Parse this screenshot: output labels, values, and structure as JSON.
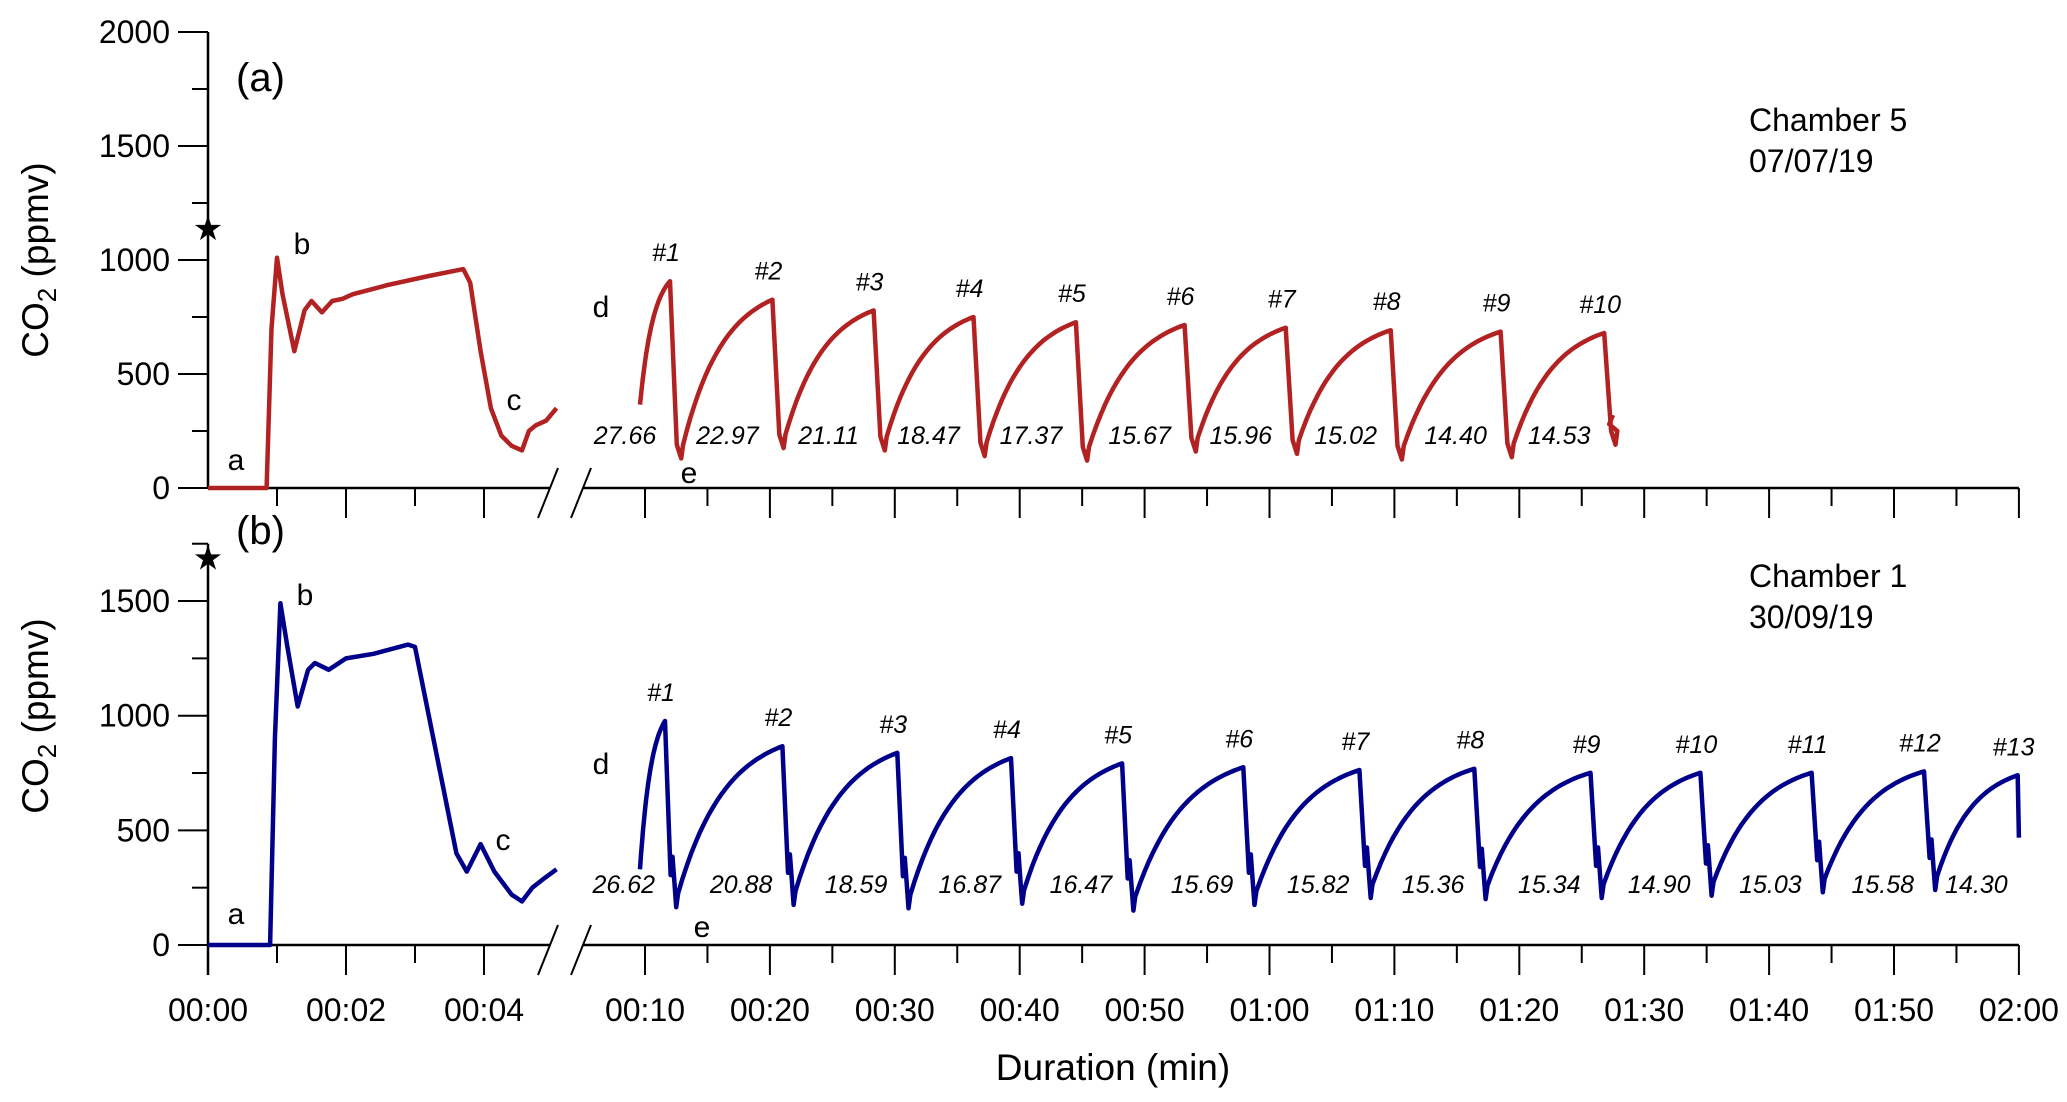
{
  "chart_data": {
    "type": "line",
    "xlabel": "Duration (min)",
    "x_ticks": [
      "00:00",
      "00:02",
      "00:04",
      "00:10",
      "00:20",
      "00:30",
      "00:40",
      "00:50",
      "01:00",
      "01:10",
      "01:20",
      "01:30",
      "01:40",
      "01:50",
      "02:00"
    ],
    "x_axis_break": [
      5,
      10
    ],
    "panels": [
      {
        "tag": "(a)",
        "chamber": "Chamber 5",
        "date": "07/07/19",
        "ylabel": "CO",
        "ylabel_sub": "2",
        "ylabel_unit": " (ppmv)",
        "ylim": [
          0,
          2000
        ],
        "y_ticks": [
          "0",
          "500",
          "1000",
          "1500",
          "2000"
        ],
        "color": "#b22222",
        "star_value": 1140,
        "letters": {
          "a": "a",
          "b": "b",
          "c": "c",
          "d": "d",
          "e": "e"
        },
        "initial_segment": [
          [
            0,
            0
          ],
          [
            0.85,
            0
          ],
          [
            0.92,
            700
          ],
          [
            1.0,
            1010
          ],
          [
            1.08,
            850
          ],
          [
            1.25,
            600
          ],
          [
            1.4,
            780
          ],
          [
            1.5,
            820
          ],
          [
            1.65,
            770
          ],
          [
            1.8,
            820
          ],
          [
            1.95,
            830
          ],
          [
            2.1,
            850
          ],
          [
            2.6,
            890
          ],
          [
            3.2,
            930
          ],
          [
            3.7,
            960
          ],
          [
            3.8,
            900
          ],
          [
            3.95,
            600
          ],
          [
            4.1,
            350
          ],
          [
            4.25,
            230
          ],
          [
            4.4,
            185
          ],
          [
            4.55,
            165
          ],
          [
            4.65,
            250
          ],
          [
            4.75,
            275
          ],
          [
            4.9,
            295
          ],
          [
            5.05,
            350
          ]
        ],
        "cycles_start": [
          9.6,
          366
        ],
        "cycles": [
          {
            "label": "#1",
            "peak_min": 12.0,
            "peak": 907,
            "trough": 130,
            "value": "27.66"
          },
          {
            "label": "#2",
            "peak_min": 20.2,
            "peak": 826,
            "trough": 175,
            "value": "22.97"
          },
          {
            "label": "#3",
            "peak_min": 28.3,
            "peak": 779,
            "trough": 165,
            "value": "21.11"
          },
          {
            "label": "#4",
            "peak_min": 36.3,
            "peak": 750,
            "trough": 140,
            "value": "18.47"
          },
          {
            "label": "#5",
            "peak_min": 44.5,
            "peak": 727,
            "trough": 120,
            "value": "17.37"
          },
          {
            "label": "#6",
            "peak_min": 53.2,
            "peak": 715,
            "trough": 160,
            "value": "15.67"
          },
          {
            "label": "#7",
            "peak_min": 61.3,
            "peak": 703,
            "trough": 150,
            "value": "15.96"
          },
          {
            "label": "#8",
            "peak_min": 69.7,
            "peak": 692,
            "trough": 125,
            "value": "15.02"
          },
          {
            "label": "#9",
            "peak_min": 78.5,
            "peak": 686,
            "trough": 135,
            "value": "14.40"
          },
          {
            "label": "#10",
            "peak_min": 86.8,
            "peak": 680,
            "trough": 190,
            "value": "14.53"
          }
        ],
        "cycles_end": [
          87.5,
          320
        ]
      },
      {
        "tag": "(b)",
        "chamber": "Chamber 1",
        "date": "30/09/19",
        "ylabel": "CO",
        "ylabel_sub": "2",
        "ylabel_unit": " (ppmv)",
        "ylim": [
          0,
          1750
        ],
        "y_ticks": [
          "0",
          "500",
          "1000",
          "1500"
        ],
        "color": "#00008b",
        "star_value": 1690,
        "letters": {
          "a": "a",
          "b": "b",
          "c": "c",
          "d": "d",
          "e": "e"
        },
        "initial_segment": [
          [
            0,
            0
          ],
          [
            0.9,
            0
          ],
          [
            0.97,
            900
          ],
          [
            1.05,
            1490
          ],
          [
            1.15,
            1300
          ],
          [
            1.3,
            1040
          ],
          [
            1.45,
            1200
          ],
          [
            1.55,
            1230
          ],
          [
            1.75,
            1200
          ],
          [
            2.0,
            1250
          ],
          [
            2.4,
            1270
          ],
          [
            2.9,
            1310
          ],
          [
            3.0,
            1300
          ],
          [
            3.2,
            1000
          ],
          [
            3.4,
            700
          ],
          [
            3.6,
            400
          ],
          [
            3.75,
            320
          ],
          [
            3.95,
            440
          ],
          [
            4.15,
            320
          ],
          [
            4.4,
            220
          ],
          [
            4.55,
            190
          ],
          [
            4.7,
            250
          ],
          [
            4.85,
            285
          ],
          [
            5.05,
            330
          ]
        ],
        "cycles_start": [
          9.6,
          330
        ],
        "cycles": [
          {
            "label": "#1",
            "peak_min": 11.6,
            "peak": 977,
            "trough": 165,
            "value": "26.62"
          },
          {
            "label": "#2",
            "peak_min": 21.0,
            "peak": 867,
            "trough": 175,
            "value": "20.88"
          },
          {
            "label": "#3",
            "peak_min": 30.2,
            "peak": 838,
            "trough": 160,
            "value": "18.59"
          },
          {
            "label": "#4",
            "peak_min": 39.3,
            "peak": 815,
            "trough": 180,
            "value": "16.87"
          },
          {
            "label": "#5",
            "peak_min": 48.2,
            "peak": 792,
            "trough": 150,
            "value": "16.47"
          },
          {
            "label": "#6",
            "peak_min": 57.9,
            "peak": 775,
            "trough": 175,
            "value": "15.69"
          },
          {
            "label": "#7",
            "peak_min": 67.2,
            "peak": 763,
            "trough": 205,
            "value": "15.82"
          },
          {
            "label": "#8",
            "peak_min": 76.4,
            "peak": 769,
            "trough": 200,
            "value": "15.36"
          },
          {
            "label": "#9",
            "peak_min": 85.7,
            "peak": 751,
            "trough": 205,
            "value": "15.34"
          },
          {
            "label": "#10",
            "peak_min": 94.5,
            "peak": 751,
            "trough": 215,
            "value": "14.90"
          },
          {
            "label": "#11",
            "peak_min": 103.4,
            "peak": 751,
            "trough": 230,
            "value": "15.03"
          },
          {
            "label": "#12",
            "peak_min": 112.4,
            "peak": 757,
            "trough": 240,
            "value": "15.58"
          },
          {
            "label": "#13",
            "peak_min": 119.9,
            "peak": 740,
            "trough": null,
            "value": "14.30"
          }
        ],
        "cycles_end": [
          120,
          468
        ]
      }
    ]
  }
}
